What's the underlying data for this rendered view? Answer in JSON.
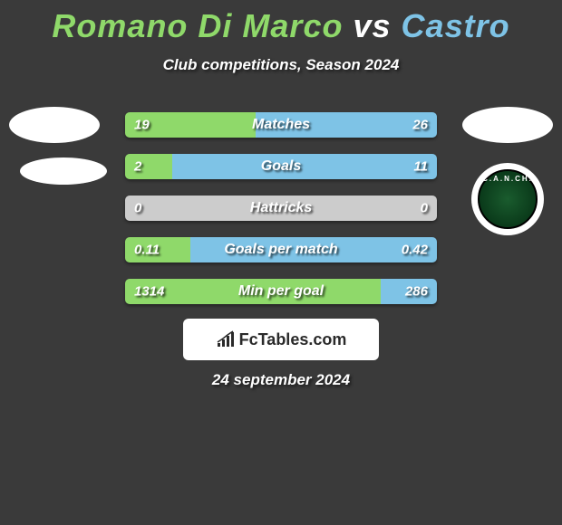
{
  "title": {
    "player1": "Romano Di Marco",
    "vs": "vs",
    "player2": "Castro",
    "player1_color": "#8fd96a",
    "player2_color": "#7ec3e6"
  },
  "subtitle": "Club competitions, Season 2024",
  "club_logo": {
    "text_top": "C.A.N.CH.",
    "text_bottom": ""
  },
  "stats": [
    {
      "label": "Matches",
      "left_value": "19",
      "right_value": "26",
      "left_pct": 42,
      "right_pct": 58,
      "left_color": "#8fd96a",
      "right_color": "#7ec3e6",
      "mid_color": "#cccccc"
    },
    {
      "label": "Goals",
      "left_value": "2",
      "right_value": "11",
      "left_pct": 15,
      "right_pct": 85,
      "left_color": "#8fd96a",
      "right_color": "#7ec3e6",
      "mid_color": "#cccccc"
    },
    {
      "label": "Hattricks",
      "left_value": "0",
      "right_value": "0",
      "left_pct": 0,
      "right_pct": 0,
      "left_color": "#8fd96a",
      "right_color": "#7ec3e6",
      "mid_color": "#cccccc"
    },
    {
      "label": "Goals per match",
      "left_value": "0.11",
      "right_value": "0.42",
      "left_pct": 21,
      "right_pct": 79,
      "left_color": "#8fd96a",
      "right_color": "#7ec3e6",
      "mid_color": "#cccccc"
    },
    {
      "label": "Min per goal",
      "left_value": "1314",
      "right_value": "286",
      "left_pct": 82,
      "right_pct": 18,
      "left_color": "#8fd96a",
      "right_color": "#7ec3e6",
      "mid_color": "#cccccc"
    }
  ],
  "branding": {
    "text": "FcTables.com"
  },
  "date": "24 september 2024"
}
